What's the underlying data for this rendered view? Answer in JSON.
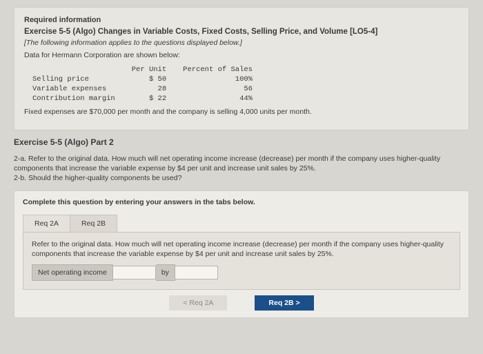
{
  "header": {
    "required_info": "Required information",
    "exercise_title": "Exercise 5-5 (Algo) Changes in Variable Costs, Fixed Costs, Selling Price, and Volume [LO5-4]",
    "note": "[The following information applies to the questions displayed below.]",
    "data_intro": "Data for Hermann Corporation are shown below:"
  },
  "table": {
    "col_per_unit": "Per Unit",
    "col_percent": "Percent of Sales",
    "rows": [
      {
        "label": "Selling price",
        "per_unit": "$ 50",
        "pct": "100%"
      },
      {
        "label": "Variable expenses",
        "per_unit": "28",
        "pct": "56"
      },
      {
        "label": "Contribution margin",
        "per_unit": "$ 22",
        "pct": "44%"
      }
    ],
    "fixed_line": "Fixed expenses are $70,000 per month and the company is selling 4,000 units per month."
  },
  "part2": {
    "title": "Exercise 5-5 (Algo) Part 2",
    "q2a": "2-a. Refer to the original data. How much will net operating income increase (decrease) per month if the company uses higher-quality components that increase the variable expense by $4 per unit and increase unit sales by 25%.",
    "q2b": "2-b. Should the higher-quality components be used?"
  },
  "answer_area": {
    "instruction": "Complete this question by entering your answers in the tabs below.",
    "tab_a": "Req 2A",
    "tab_b": "Req 2B",
    "tab_body": "Refer to the original data. How much will net operating income increase (decrease) per month if the company uses higher-quality components that increase the variable expense by $4 per unit and increase unit sales by 25%.",
    "ans_label": "Net operating income",
    "by_label": "by",
    "nav_prev": "<   Req 2A",
    "nav_next": "Req 2B   >"
  },
  "colors": {
    "page_bg": "#d8d6d0",
    "card_bg": "#e8e6e0",
    "inner_bg": "#eeece6",
    "tab_bg": "#e4e2db",
    "accent": "#1a4f8a"
  }
}
